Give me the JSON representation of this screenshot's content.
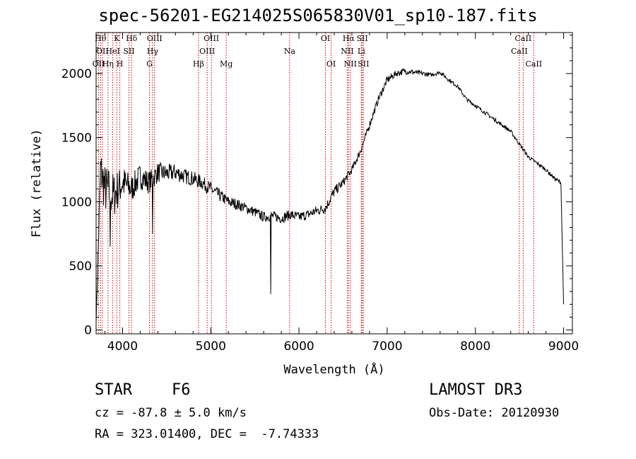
{
  "title": "spec-56201-EG214025S065830V01_sp10-187.fits",
  "info": {
    "object_class": "STAR",
    "subclass": "F6",
    "survey": "LAMOST DR3",
    "cz": "cz = -87.8 ± 5.0 km/s",
    "obs_date": "Obs-Date: 20120930",
    "radec": "RA = 323.01400, DEC =  -7.74333"
  },
  "chart_data": {
    "type": "line",
    "title": "spec-56201-EG214025S065830V01_sp10-187.fits",
    "xlabel": "Wavelength (Å)",
    "ylabel": "Flux (relative)",
    "xlim": [
      3700,
      9100
    ],
    "ylim": [
      -30,
      2320
    ],
    "xticks": [
      4000,
      5000,
      6000,
      7000,
      8000,
      9000
    ],
    "yticks": [
      0,
      500,
      1000,
      1500,
      2000
    ],
    "grid": false,
    "line_color": "#000000",
    "marker_color": "#cc0000",
    "spectrum": {
      "x": [
        3700,
        3750,
        3800,
        3900,
        4000,
        4100,
        4200,
        4300,
        4400,
        4500,
        4600,
        4700,
        4800,
        4900,
        5000,
        5100,
        5200,
        5300,
        5400,
        5500,
        5600,
        5700,
        5800,
        5900,
        6000,
        6100,
        6200,
        6300,
        6400,
        6500,
        6600,
        6700,
        6800,
        6900,
        7000,
        7100,
        7200,
        7300,
        7400,
        7500,
        7600,
        7700,
        7800,
        7900,
        8000,
        8100,
        8200,
        8300,
        8400,
        8500,
        8600,
        8700,
        8800,
        8900,
        8970,
        9000
      ],
      "y": [
        50,
        1250,
        1100,
        1050,
        1150,
        1100,
        1200,
        1150,
        1230,
        1220,
        1230,
        1200,
        1180,
        1150,
        1100,
        1050,
        1000,
        980,
        950,
        920,
        880,
        890,
        870,
        900,
        880,
        900,
        930,
        950,
        1080,
        1150,
        1250,
        1400,
        1600,
        1800,
        1950,
        2000,
        2020,
        2010,
        2000,
        1990,
        2010,
        1950,
        1900,
        1800,
        1750,
        1700,
        1650,
        1600,
        1550,
        1450,
        1350,
        1300,
        1250,
        1180,
        1150,
        200
      ],
      "noise": [
        0,
        180,
        200,
        180,
        140,
        110,
        100,
        90,
        80,
        70,
        70,
        60,
        60,
        55,
        55,
        50,
        45,
        45,
        40,
        40,
        40,
        40,
        40,
        40,
        40,
        40,
        40,
        40,
        40,
        35,
        30,
        30,
        30,
        30,
        30,
        25,
        25,
        20,
        20,
        15,
        15,
        15,
        15,
        15,
        15,
        15,
        15,
        15,
        15,
        15,
        15,
        15,
        15,
        15,
        15,
        0
      ],
      "dips": [
        {
          "x": 5680,
          "y": 280
        },
        {
          "x": 4340,
          "y": 750
        },
        {
          "x": 3860,
          "y": 650
        }
      ]
    },
    "lines": [
      {
        "w": 3727,
        "label": "OII",
        "row": 2
      },
      {
        "w": 3750,
        "label": "Hθ",
        "row": 0
      },
      {
        "w": 3771,
        "label": "OII",
        "row": 1
      },
      {
        "w": 3835,
        "label": "Hη",
        "row": 2
      },
      {
        "w": 3889,
        "label": "HeI",
        "row": 1
      },
      {
        "w": 3934,
        "label": "K",
        "row": 0
      },
      {
        "w": 3969,
        "label": "H",
        "row": 2
      },
      {
        "w": 4072,
        "label": "SII",
        "row": 1
      },
      {
        "w": 4102,
        "label": "Hδ",
        "row": 0
      },
      {
        "w": 4305,
        "label": "G",
        "row": 2
      },
      {
        "w": 4340,
        "label": "Hγ",
        "row": 1
      },
      {
        "w": 4363,
        "label": "OIII",
        "row": 0
      },
      {
        "w": 4861,
        "label": "Hβ",
        "row": 2
      },
      {
        "w": 4959,
        "label": "OIII",
        "row": 1
      },
      {
        "w": 5007,
        "label": "OIII",
        "row": 0
      },
      {
        "w": 5175,
        "label": "Mg",
        "row": 2
      },
      {
        "w": 5894,
        "label": "Na",
        "row": 1
      },
      {
        "w": 6300,
        "label": "OI",
        "row": 0
      },
      {
        "w": 6364,
        "label": "OI",
        "row": 2
      },
      {
        "w": 6548,
        "label": "NII",
        "row": 1
      },
      {
        "w": 6563,
        "label": "Hα",
        "row": 0
      },
      {
        "w": 6583,
        "label": "NII",
        "row": 2
      },
      {
        "w": 6707,
        "label": "Li",
        "row": 1
      },
      {
        "w": 6717,
        "label": "SII",
        "row": 0
      },
      {
        "w": 6731,
        "label": "SII",
        "row": 2
      },
      {
        "w": 8498,
        "label": "CaII",
        "row": 1
      },
      {
        "w": 8542,
        "label": "CaII",
        "row": 0
      },
      {
        "w": 8662,
        "label": "CaII",
        "row": 2
      }
    ]
  }
}
